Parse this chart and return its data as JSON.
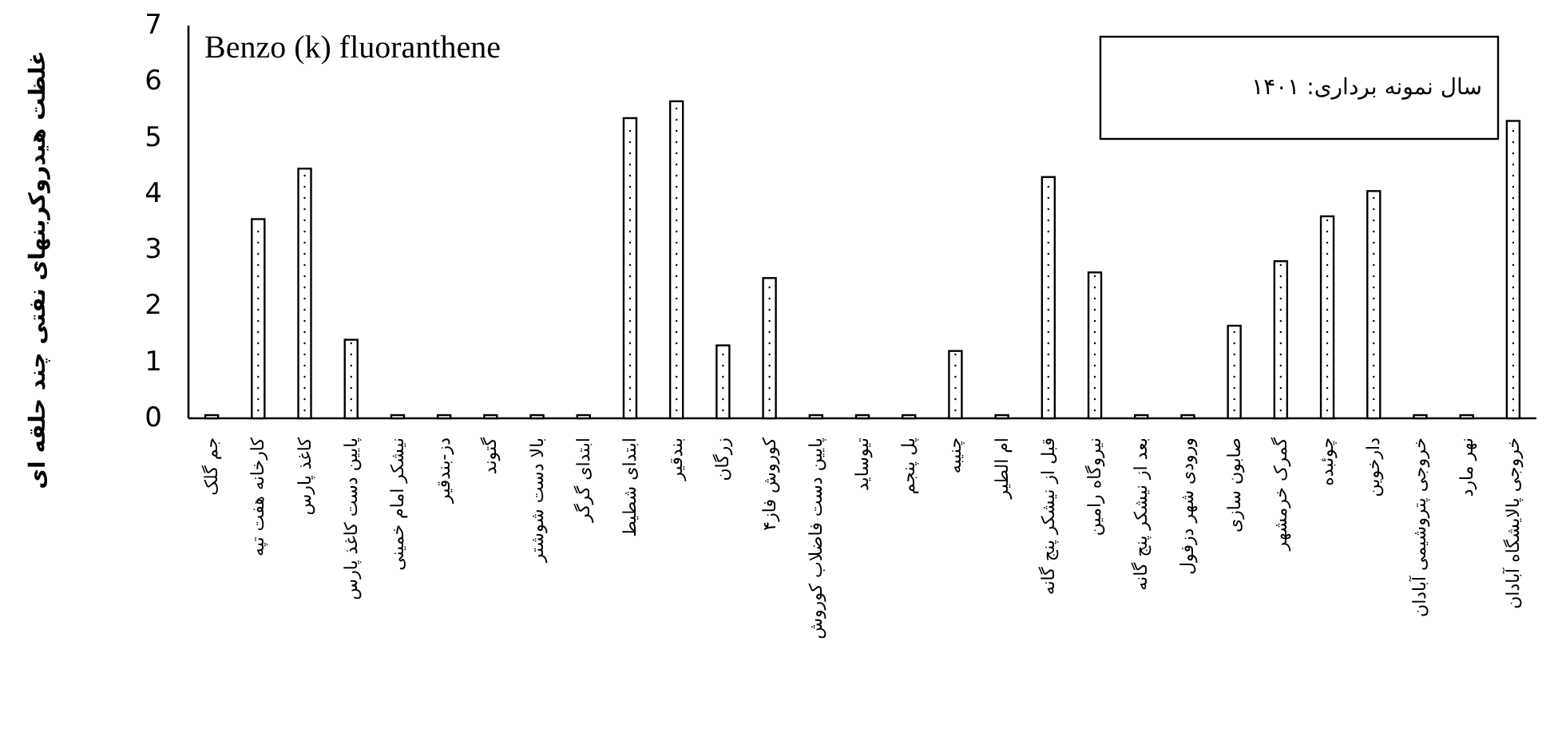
{
  "chart_data": {
    "type": "bar",
    "title": "Benzo (k) fluoranthene",
    "ylabel": "غلظت هیدروکربنهای نفتی چند حلقه ای",
    "categories": [
      "جم گلک",
      "کارخانه هفت تپه",
      "کاغذ پارس",
      "پایین دست کاغذ پارس",
      "نیشکر امام خمینی",
      "دز-بندقیر",
      "گتوند",
      "بالا دست شوشتر",
      "ابتدای گرگر",
      "ابتدای شطیط",
      "بندقیر",
      "زرگان",
      "کوروش فاز۴",
      "پایین دست فاضلاب کوروش",
      "تیوساید",
      "پل پنجم",
      "چنیبه",
      "ام الطیر",
      "قبل از نیشکر پنج گانه",
      "نیروگاه رامین",
      "بعد از نیشکر پنج گانه",
      "ورودی شهر دزفول",
      "صابون سازی",
      "گمرک خرمشهر",
      "چوئبده",
      "دارخوین",
      "خروجی پتروشیمی آبادان",
      "نهر مارد",
      "خروجی پالایشگاه آبادان"
    ],
    "values": [
      0,
      3.55,
      4.45,
      1.4,
      0,
      0,
      0,
      0,
      0,
      5.35,
      5.65,
      1.3,
      2.5,
      0,
      0,
      0,
      1.2,
      0,
      4.3,
      2.6,
      0,
      0,
      1.65,
      2.8,
      3.6,
      4.05,
      0,
      0,
      5.3
    ],
    "color": "#ffffff",
    "ylim": [
      0,
      7
    ],
    "yticks": [
      0,
      1,
      2,
      3,
      4,
      5,
      6,
      7
    ],
    "annotations": [
      "سال نمونه برداری: ۱۴۰۱"
    ]
  }
}
